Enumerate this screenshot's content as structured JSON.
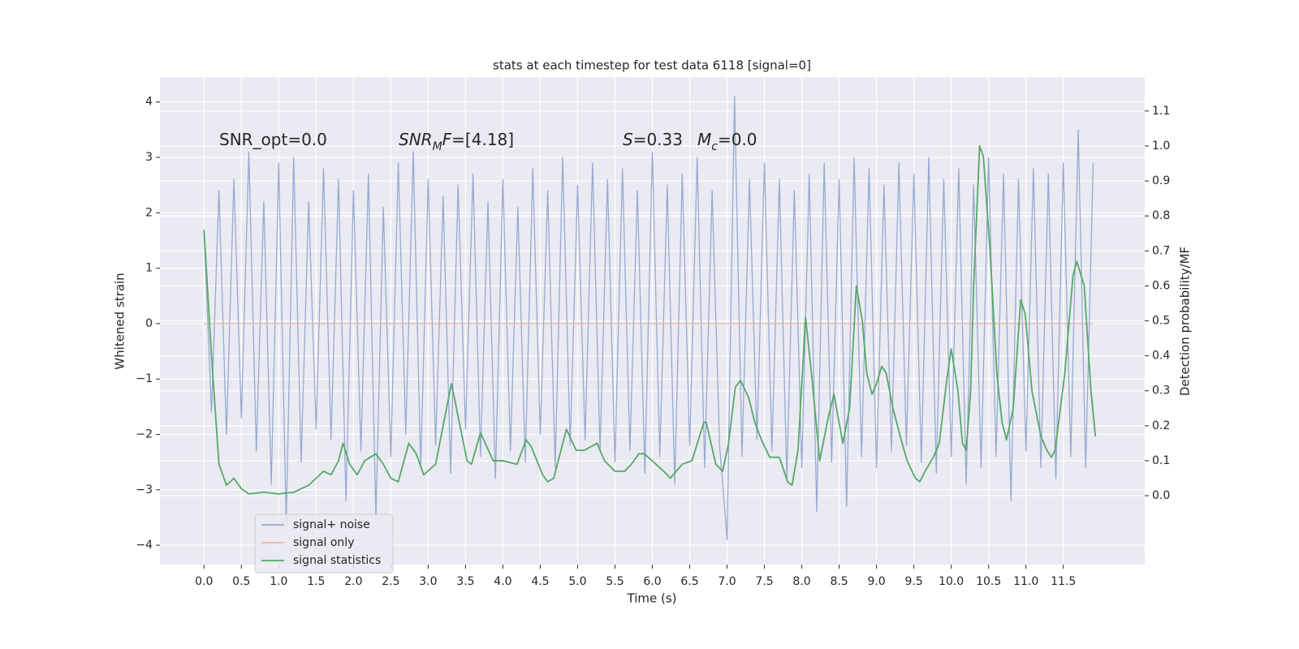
{
  "chart_data": {
    "type": "line",
    "title": "stats at each timestep for test data 6118 [signal=0]",
    "xlabel": "Time (s)",
    "ylabel": "Whitened strain",
    "y2label": "Detection probability/MF",
    "xlim": [
      -0.59,
      12.59
    ],
    "ylim": [
      -4.35,
      4.45
    ],
    "y2lim": [
      -0.197,
      1.197
    ],
    "grid": true,
    "legend": "lower left",
    "xticks": [
      {
        "value": 0,
        "label": "0.0"
      },
      0.5,
      {
        "value": 1,
        "label": "1.0"
      },
      1.5,
      {
        "value": 2,
        "label": "2.0"
      },
      2.5,
      {
        "value": 3,
        "label": "3.0"
      },
      3.5,
      {
        "value": 4,
        "label": "4.0"
      },
      4.5,
      {
        "value": 5,
        "label": "5.0"
      },
      5.5,
      {
        "value": 6,
        "label": "6.0"
      },
      6.5,
      {
        "value": 7,
        "label": "7.0"
      },
      7.5,
      {
        "value": 8,
        "label": "8.0"
      },
      8.5,
      {
        "value": 9,
        "label": "9.0"
      },
      9.5,
      {
        "value": 10,
        "label": "10.0"
      },
      10.5,
      {
        "value": 11,
        "label": "11.0"
      },
      11.5
    ],
    "yticks": [
      {
        "value": -4,
        "label": "−4"
      },
      {
        "value": -3,
        "label": "−3"
      },
      {
        "value": -2,
        "label": "−2"
      },
      {
        "value": -1,
        "label": "−1"
      },
      0,
      1,
      2,
      3,
      4
    ],
    "y2ticks": [
      {
        "value": 0,
        "label": "0.0"
      },
      0.1,
      0.2,
      0.3,
      0.4,
      0.5,
      0.6,
      0.7,
      0.8,
      0.9,
      {
        "value": 1,
        "label": "1.0"
      },
      1.1
    ],
    "annotations": [
      [
        {
          "text": "SNR_opt=0.0"
        }
      ],
      [
        {
          "text": "SNR",
          "italic": true
        },
        {
          "text": "M",
          "italic": true,
          "sub": true
        },
        {
          "text": "F",
          "italic": true
        },
        {
          "text": "=[4.18]"
        }
      ],
      [
        {
          "text": "S",
          "italic": true
        },
        {
          "text": "=0.33"
        }
      ],
      [
        {
          "text": "M",
          "italic": true
        },
        {
          "text": "c",
          "italic": true,
          "sub": true
        },
        {
          "text": "=0.0"
        }
      ]
    ],
    "series": [
      {
        "name": "signal+ noise",
        "color": "#97a9d0",
        "axis": "y",
        "x": [
          0,
          0.1,
          0.2,
          0.3,
          0.4,
          0.5,
          0.6,
          0.7,
          0.8,
          0.9,
          1,
          1.1,
          1.2,
          1.3,
          1.4,
          1.5,
          1.6,
          1.7,
          1.8,
          1.9,
          2,
          2.1,
          2.2,
          2.3,
          2.4,
          2.5,
          2.6,
          2.7,
          2.8,
          2.9,
          3,
          3.1,
          3.2,
          3.3,
          3.4,
          3.5,
          3.6,
          3.7,
          3.8,
          3.9,
          4,
          4.1,
          4.2,
          4.3,
          4.4,
          4.5,
          4.6,
          4.7,
          4.8,
          4.9,
          5,
          5.1,
          5.2,
          5.3,
          5.4,
          5.5,
          5.6,
          5.7,
          5.8,
          5.9,
          6,
          6.1,
          6.2,
          6.3,
          6.4,
          6.5,
          6.6,
          6.7,
          6.8,
          6.9,
          7,
          7.1,
          7.2,
          7.3,
          7.4,
          7.5,
          7.6,
          7.7,
          7.8,
          7.9,
          8,
          8.1,
          8.2,
          8.3,
          8.4,
          8.5,
          8.6,
          8.7,
          8.8,
          8.9,
          9,
          9.1,
          9.2,
          9.3,
          9.4,
          9.5,
          9.6,
          9.7,
          9.8,
          9.9,
          10,
          10.1,
          10.2,
          10.3,
          10.4,
          10.5,
          10.6,
          10.7,
          10.8,
          10.9,
          11,
          11.1,
          11.2,
          11.3,
          11.4,
          11.5,
          11.6,
          11.7,
          11.8,
          11.9
        ],
        "values": [
          1.7,
          -1.6,
          2.4,
          -2.0,
          2.6,
          -1.7,
          3.1,
          -2.3,
          2.2,
          -2.9,
          2.9,
          -3.6,
          3.0,
          -2.5,
          2.2,
          -1.9,
          2.8,
          -2.1,
          2.6,
          -3.2,
          2.4,
          -2.3,
          2.7,
          -3.5,
          2.1,
          -2.4,
          2.9,
          -2.0,
          3.1,
          -2.6,
          2.6,
          -2.2,
          2.3,
          -2.7,
          2.5,
          -1.9,
          2.7,
          -2.4,
          2.2,
          -2.8,
          2.6,
          -2.3,
          2.1,
          -2.5,
          2.8,
          -2.0,
          2.4,
          -2.6,
          3.0,
          -2.2,
          2.5,
          -2.1,
          2.9,
          -2.3,
          2.6,
          -2.5,
          2.8,
          -2.3,
          2.4,
          -2.7,
          3.1,
          -2.4,
          2.5,
          -2.9,
          2.7,
          -2.2,
          3.0,
          -2.6,
          2.4,
          -2.2,
          -3.9,
          4.1,
          -2.4,
          2.6,
          -2.1,
          2.9,
          -2.3,
          2.6,
          -2.8,
          2.4,
          -2.6,
          2.7,
          -3.4,
          2.9,
          -2.5,
          2.6,
          -3.3,
          3.0,
          -2.4,
          2.8,
          -2.6,
          2.5,
          -2.3,
          2.9,
          -2.2,
          2.7,
          -2.5,
          3.0,
          -2.7,
          2.6,
          -2.4,
          2.8,
          -2.9,
          2.5,
          -2.6,
          3.0,
          -2.4,
          2.7,
          -3.2,
          2.6,
          -2.3,
          2.8,
          -2.6,
          2.7,
          -2.8,
          2.9,
          -2.4,
          3.5,
          -2.6,
          2.9
        ]
      },
      {
        "name": "signal only",
        "color": "#e8b79c",
        "axis": "y",
        "x": [
          0,
          11.9
        ],
        "values": [
          0,
          0
        ]
      },
      {
        "name": "signal statistics",
        "color": "#55a868",
        "axis": "y2",
        "x": [
          0,
          0.1,
          0.2,
          0.3,
          0.4,
          0.5,
          0.6,
          0.8,
          1.0,
          1.2,
          1.3,
          1.4,
          1.5,
          1.6,
          1.7,
          1.8,
          1.86,
          1.95,
          2.05,
          2.15,
          2.3,
          2.4,
          2.5,
          2.6,
          2.74,
          2.84,
          2.94,
          3.1,
          3.2,
          3.31,
          3.36,
          3.52,
          3.58,
          3.7,
          3.87,
          4.0,
          4.19,
          4.31,
          4.38,
          4.53,
          4.6,
          4.68,
          4.85,
          4.98,
          5.09,
          5.26,
          5.36,
          5.5,
          5.63,
          5.72,
          5.82,
          5.89,
          6.05,
          6.2,
          6.24,
          6.4,
          6.53,
          6.69,
          6.72,
          6.85,
          6.94,
          7.02,
          7.11,
          7.18,
          7.29,
          7.37,
          7.46,
          7.57,
          7.7,
          7.81,
          7.87,
          7.95,
          8.05,
          8.13,
          8.24,
          8.35,
          8.43,
          8.55,
          8.64,
          8.73,
          8.81,
          8.87,
          8.94,
          9.0,
          9.07,
          9.13,
          9.22,
          9.33,
          9.41,
          9.52,
          9.58,
          9.65,
          9.76,
          9.84,
          9.94,
          10.0,
          10.09,
          10.15,
          10.2,
          10.26,
          10.3,
          10.38,
          10.43,
          10.52,
          10.61,
          10.68,
          10.74,
          10.83,
          10.93,
          10.99,
          11.08,
          11.2,
          11.28,
          11.34,
          11.39,
          11.52,
          11.63,
          11.68,
          11.78,
          11.87,
          11.93
        ],
        "values": [
          0.76,
          0.4,
          0.09,
          0.03,
          0.05,
          0.02,
          0.005,
          0.01,
          0.005,
          0.01,
          0.02,
          0.03,
          0.05,
          0.07,
          0.06,
          0.1,
          0.15,
          0.09,
          0.06,
          0.1,
          0.12,
          0.09,
          0.05,
          0.04,
          0.15,
          0.12,
          0.06,
          0.09,
          0.2,
          0.32,
          0.27,
          0.1,
          0.09,
          0.18,
          0.1,
          0.1,
          0.09,
          0.16,
          0.14,
          0.06,
          0.04,
          0.05,
          0.19,
          0.13,
          0.13,
          0.15,
          0.1,
          0.07,
          0.07,
          0.09,
          0.12,
          0.12,
          0.09,
          0.06,
          0.05,
          0.09,
          0.1,
          0.21,
          0.21,
          0.09,
          0.07,
          0.15,
          0.31,
          0.33,
          0.28,
          0.21,
          0.16,
          0.11,
          0.11,
          0.04,
          0.03,
          0.13,
          0.51,
          0.35,
          0.1,
          0.22,
          0.29,
          0.15,
          0.25,
          0.6,
          0.5,
          0.35,
          0.29,
          0.32,
          0.37,
          0.35,
          0.25,
          0.16,
          0.1,
          0.05,
          0.04,
          0.07,
          0.11,
          0.15,
          0.33,
          0.42,
          0.3,
          0.15,
          0.13,
          0.3,
          0.6,
          1.0,
          0.97,
          0.7,
          0.35,
          0.21,
          0.16,
          0.25,
          0.56,
          0.52,
          0.3,
          0.17,
          0.13,
          0.11,
          0.13,
          0.35,
          0.63,
          0.67,
          0.6,
          0.3,
          0.17
        ]
      }
    ]
  }
}
